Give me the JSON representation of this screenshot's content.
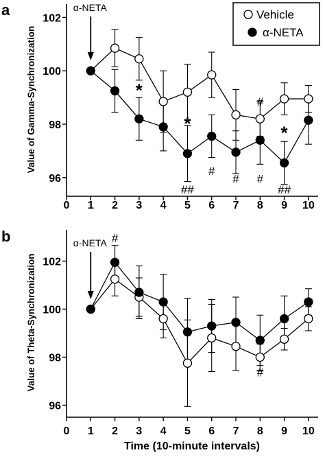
{
  "figure": {
    "panel_a_letter": "a",
    "panel_b_letter": "b",
    "xlabel": "Time (10-minute intervals)"
  },
  "legend": {
    "items": [
      {
        "label": "Vehicle",
        "marker": "open-circle"
      },
      {
        "label": "α-NETA",
        "marker": "filled-circle"
      }
    ]
  },
  "colors": {
    "vehicle_fill": "#ffffff",
    "neta_fill": "#000000",
    "line": "#000000"
  },
  "chart_data": [
    {
      "type": "line",
      "panel": "a",
      "title": "",
      "xlabel": "",
      "ylabel": "Value of Gamma-Synchronization",
      "x": [
        1,
        2,
        3,
        4,
        5,
        6,
        7,
        8,
        9,
        10
      ],
      "xticks": [
        "0",
        "1",
        "2",
        "3",
        "4",
        "5",
        "6",
        "7",
        "8",
        "9",
        "10"
      ],
      "xlim": [
        0,
        10.4
      ],
      "ylim": [
        95.3,
        102.5
      ],
      "yticks": [
        "96",
        "98",
        "100",
        "102"
      ],
      "series": [
        {
          "name": "Vehicle",
          "marker": "open-circle",
          "values": [
            100.0,
            100.85,
            100.45,
            98.85,
            99.2,
            99.85,
            98.35,
            98.2,
            98.95,
            98.95
          ],
          "err": [
            0,
            0.7,
            0.8,
            1.15,
            1.05,
            0.85,
            0.95,
            0.65,
            0.6,
            0.5
          ]
        },
        {
          "name": "α-NETA",
          "marker": "filled-circle",
          "values": [
            100.0,
            99.25,
            98.2,
            97.9,
            96.9,
            97.55,
            96.95,
            97.4,
            96.55,
            98.15
          ],
          "err": [
            0,
            0.8,
            0.8,
            0.9,
            1.05,
            0.8,
            0.8,
            0.9,
            0.8,
            0.9
          ]
        }
      ],
      "annotations": [
        {
          "text": "α-NETA",
          "x": 1,
          "y": 102.2,
          "kind": "arrow-label"
        },
        {
          "text": "*",
          "x": 3,
          "y": 99.3,
          "kind": "star"
        },
        {
          "text": "*",
          "x": 5,
          "y": 98.05,
          "kind": "star"
        },
        {
          "text": "*",
          "x": 9,
          "y": 97.7,
          "kind": "star"
        },
        {
          "text": "##",
          "x": 5,
          "y": 95.4,
          "kind": "hash"
        },
        {
          "text": "#",
          "x": 6,
          "y": 96.1,
          "kind": "hash"
        },
        {
          "text": "#",
          "x": 7,
          "y": 95.8,
          "kind": "hash"
        },
        {
          "text": "#",
          "x": 8,
          "y": 98.7,
          "kind": "hash"
        },
        {
          "text": "#",
          "x": 8,
          "y": 95.8,
          "kind": "hash"
        },
        {
          "text": "##",
          "x": 9,
          "y": 95.4,
          "kind": "hash"
        }
      ]
    },
    {
      "type": "line",
      "panel": "b",
      "title": "",
      "xlabel": "Time (10-minute intervals)",
      "ylabel": "Value of Theta-Synchronization",
      "x": [
        1,
        2,
        3,
        4,
        5,
        6,
        7,
        8,
        9,
        10
      ],
      "xticks": [
        "0",
        "1",
        "2",
        "3",
        "4",
        "5",
        "6",
        "7",
        "8",
        "9",
        "10"
      ],
      "xlim": [
        0,
        10.4
      ],
      "ylim": [
        95.5,
        103.3
      ],
      "yticks": [
        "96",
        "98",
        "100",
        "102"
      ],
      "series": [
        {
          "name": "Vehicle",
          "marker": "open-circle",
          "values": [
            100.0,
            101.25,
            100.5,
            99.6,
            97.75,
            98.8,
            98.45,
            98.0,
            98.75,
            99.6
          ],
          "err": [
            0,
            0.7,
            0.8,
            0.8,
            1.8,
            1.4,
            1.0,
            0.55,
            0.45,
            0.5
          ]
        },
        {
          "name": "α-NETA",
          "marker": "filled-circle",
          "values": [
            100.0,
            101.95,
            100.7,
            100.3,
            99.05,
            99.3,
            99.45,
            98.7,
            99.6,
            100.3
          ],
          "err": [
            0,
            0.7,
            1.1,
            1.15,
            1.4,
            1.1,
            1.05,
            1.05,
            0.95,
            0.55
          ]
        }
      ],
      "annotations": [
        {
          "text": "α-NETA",
          "x": 1,
          "y": 102.3,
          "kind": "arrow-label"
        },
        {
          "text": "#",
          "x": 2,
          "y": 102.8,
          "kind": "hash"
        },
        {
          "text": "#",
          "x": 8,
          "y": 97.2,
          "kind": "hash"
        }
      ]
    }
  ]
}
